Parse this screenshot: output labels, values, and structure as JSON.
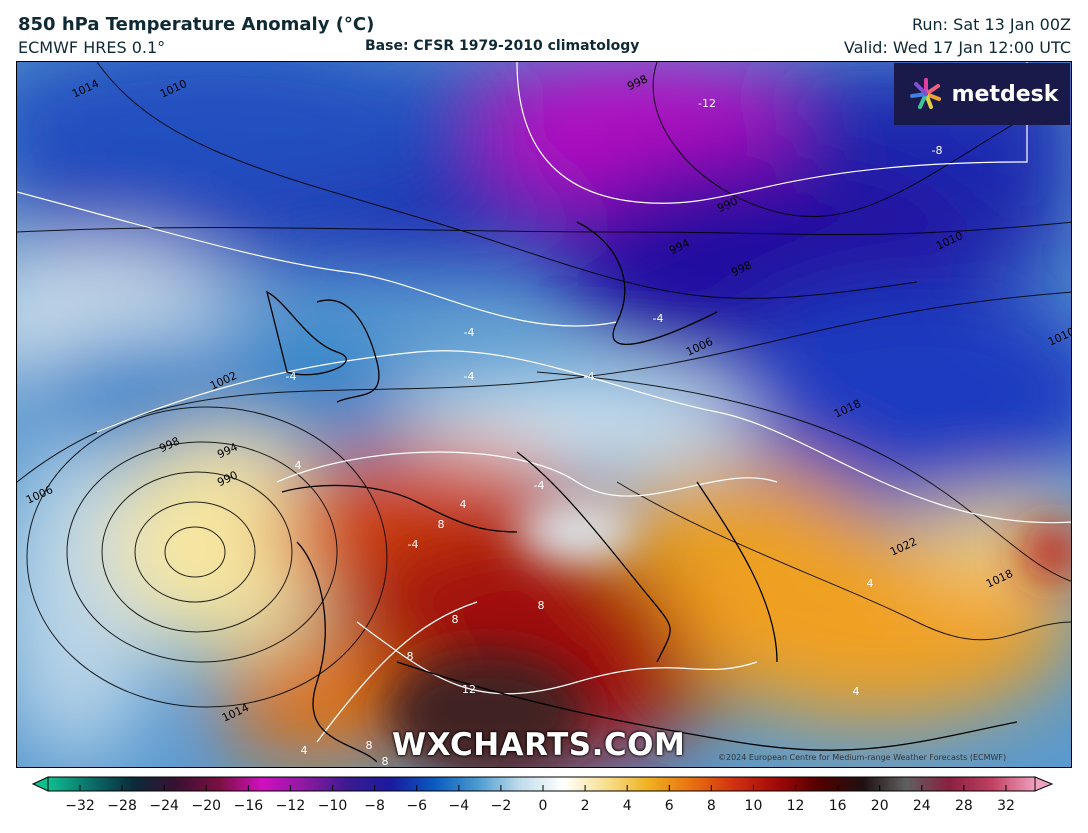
{
  "header": {
    "title": "850 hPa Temperature Anomaly (°C)",
    "model": "ECMWF HRES 0.1°",
    "base": "Base: CFSR 1979-2010 climatology",
    "run": "Run: Sat 13 Jan 00Z",
    "valid": "Valid: Wed 17 Jan 12:00 UTC"
  },
  "logo": {
    "text": "metdesk"
  },
  "watermark": "WXCHARTS.COM",
  "copyright": "©2024 European Centre for Medium-range Weather Forecasts (ECMWF)",
  "map": {
    "isobar_labels": [
      "1014",
      "1010",
      "998",
      "990",
      "994",
      "998",
      "1010",
      "1006",
      "1010",
      "1018",
      "1002",
      "998",
      "994",
      "990",
      "1006",
      "1022",
      "1018",
      "1014"
    ],
    "anomaly_labels": [
      "-12",
      "-8",
      "-4",
      "-4",
      "-4",
      "-4",
      "-4",
      "4",
      "-4",
      "4",
      "8",
      "-4",
      "8",
      "8",
      "8",
      "4",
      "4",
      "12",
      "4",
      "8",
      "8"
    ]
  },
  "colorbar": {
    "tick_labels": [
      "−32",
      "−28",
      "−24",
      "−20",
      "−16",
      "−12",
      "−10",
      "−8",
      "−6",
      "−4",
      "−2",
      "0",
      "2",
      "4",
      "6",
      "8",
      "10",
      "12",
      "16",
      "20",
      "24",
      "28",
      "32"
    ],
    "colors": [
      "#0fbf8f",
      "#0a6f6a",
      "#0a2a3a",
      "#3a1030",
      "#7a1040",
      "#d010c0",
      "#8a1aa0",
      "#3a1a90",
      "#1a1aa0",
      "#0a5ac0",
      "#4a9ad0",
      "#c0dcea",
      "#ffffff",
      "#f8e090",
      "#f0b020",
      "#e87010",
      "#d03010",
      "#a00808",
      "#500000",
      "#201010",
      "#606060",
      "#8a2040",
      "#c04060",
      "#f0a0c0"
    ]
  }
}
